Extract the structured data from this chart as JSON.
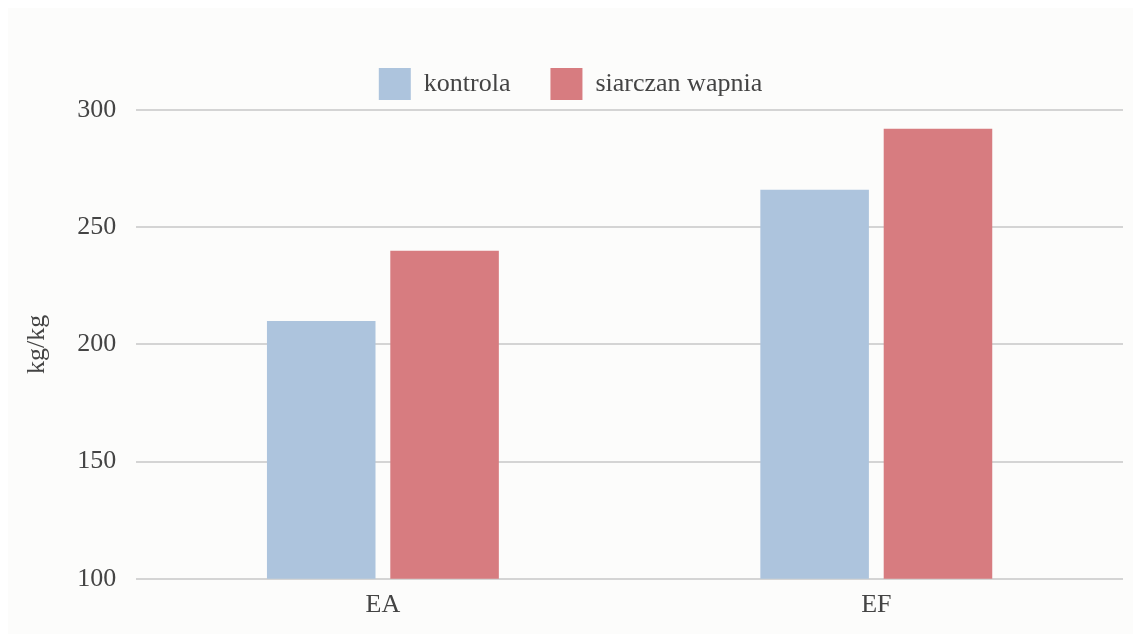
{
  "chart_data": {
    "type": "bar",
    "ylabel": "kg/kg",
    "categories": [
      "EA",
      "EF"
    ],
    "series": [
      {
        "name": "kontrola",
        "color": "#adc4dd",
        "values": [
          210,
          266
        ]
      },
      {
        "name": "siarczan wapnia",
        "color": "#d77c80",
        "values": [
          240,
          292
        ]
      }
    ],
    "ylim": [
      100,
      300
    ],
    "yticks": [
      100,
      150,
      200,
      250,
      300
    ],
    "grid": "y",
    "legend": "top"
  }
}
